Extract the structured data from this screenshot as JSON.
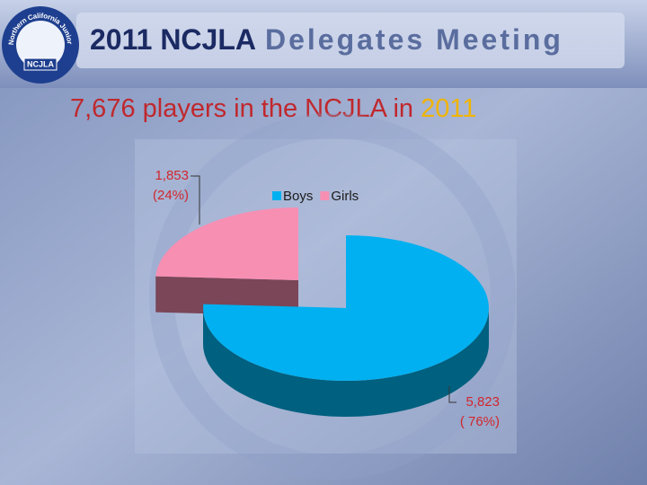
{
  "header": {
    "logo_ring_text": "Northern California Junior Lacrosse Association",
    "logo_badge": "NCJLA",
    "title_bold": "2011 NCJLA",
    "title_rest": "Delegates Meeting"
  },
  "chart_data": {
    "type": "pie3d",
    "title": "7,676 players in the NCJLA in",
    "title_highlight": "2011",
    "categories": [
      "Boys",
      "Girls"
    ],
    "values": [
      5823,
      1853
    ],
    "value_labels": [
      "5,823",
      "1,853"
    ],
    "percent_labels": [
      "( 76%)",
      "(24%)"
    ],
    "colors": [
      "#00b0f0",
      "#f78fb3"
    ],
    "side_colors": [
      "#00607f",
      "#7a4658"
    ],
    "legend": "top"
  }
}
